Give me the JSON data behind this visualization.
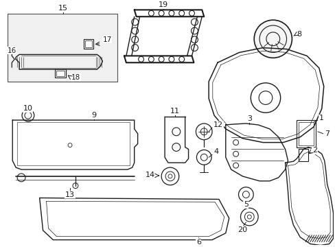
{
  "background_color": "#ffffff",
  "line_color": "#1a1a1a",
  "figsize": [
    4.89,
    3.6
  ],
  "dpi": 100
}
